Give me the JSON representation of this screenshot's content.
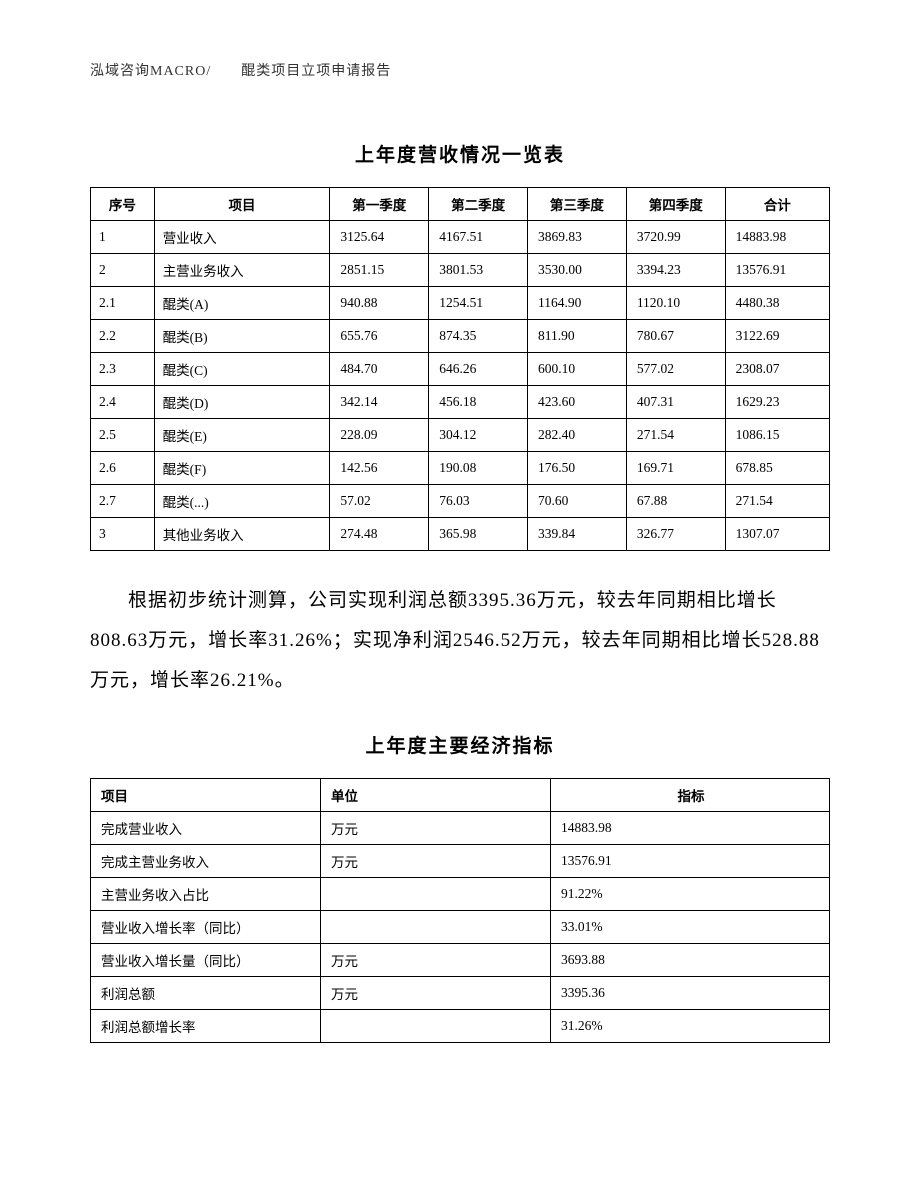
{
  "header": {
    "text": "泓域咨询MACRO/　　醌类项目立项申请报告"
  },
  "revenue_table": {
    "title": "上年度营收情况一览表",
    "columns": {
      "seq": "序号",
      "item": "项目",
      "q1": "第一季度",
      "q2": "第二季度",
      "q3": "第三季度",
      "q4": "第四季度",
      "total": "合计"
    },
    "rows": [
      {
        "seq": "1",
        "item": "营业收入",
        "q1": "3125.64",
        "q2": "4167.51",
        "q3": "3869.83",
        "q4": "3720.99",
        "total": "14883.98"
      },
      {
        "seq": "2",
        "item": "主营业务收入",
        "q1": "2851.15",
        "q2": "3801.53",
        "q3": "3530.00",
        "q4": "3394.23",
        "total": "13576.91"
      },
      {
        "seq": "2.1",
        "item": "醌类(A)",
        "q1": "940.88",
        "q2": "1254.51",
        "q3": "1164.90",
        "q4": "1120.10",
        "total": "4480.38"
      },
      {
        "seq": "2.2",
        "item": "醌类(B)",
        "q1": "655.76",
        "q2": "874.35",
        "q3": "811.90",
        "q4": "780.67",
        "total": "3122.69"
      },
      {
        "seq": "2.3",
        "item": "醌类(C)",
        "q1": "484.70",
        "q2": "646.26",
        "q3": "600.10",
        "q4": "577.02",
        "total": "2308.07"
      },
      {
        "seq": "2.4",
        "item": "醌类(D)",
        "q1": "342.14",
        "q2": "456.18",
        "q3": "423.60",
        "q4": "407.31",
        "total": "1629.23"
      },
      {
        "seq": "2.5",
        "item": "醌类(E)",
        "q1": "228.09",
        "q2": "304.12",
        "q3": "282.40",
        "q4": "271.54",
        "total": "1086.15"
      },
      {
        "seq": "2.6",
        "item": "醌类(F)",
        "q1": "142.56",
        "q2": "190.08",
        "q3": "176.50",
        "q4": "169.71",
        "total": "678.85"
      },
      {
        "seq": "2.7",
        "item": "醌类(...)",
        "q1": "57.02",
        "q2": "76.03",
        "q3": "70.60",
        "q4": "67.88",
        "total": "271.54"
      },
      {
        "seq": "3",
        "item": "其他业务收入",
        "q1": "274.48",
        "q2": "365.98",
        "q3": "339.84",
        "q4": "326.77",
        "total": "1307.07"
      }
    ]
  },
  "paragraph": {
    "text": "根据初步统计测算，公司实现利润总额3395.36万元，较去年同期相比增长808.63万元，增长率31.26%；实现净利润2546.52万元，较去年同期相比增长528.88万元，增长率26.21%。"
  },
  "metrics_table": {
    "title": "上年度主要经济指标",
    "columns": {
      "item": "项目",
      "unit": "单位",
      "value": "指标"
    },
    "rows": [
      {
        "item": "完成营业收入",
        "unit": "万元",
        "value": "14883.98"
      },
      {
        "item": "完成主营业务收入",
        "unit": "万元",
        "value": "13576.91"
      },
      {
        "item": "主营业务收入占比",
        "unit": "",
        "value": "91.22%"
      },
      {
        "item": "营业收入增长率（同比）",
        "unit": "",
        "value": "33.01%"
      },
      {
        "item": "营业收入增长量（同比）",
        "unit": "万元",
        "value": "3693.88"
      },
      {
        "item": "利润总额",
        "unit": "万元",
        "value": "3395.36"
      },
      {
        "item": "利润总额增长率",
        "unit": "",
        "value": "31.26%"
      }
    ]
  }
}
